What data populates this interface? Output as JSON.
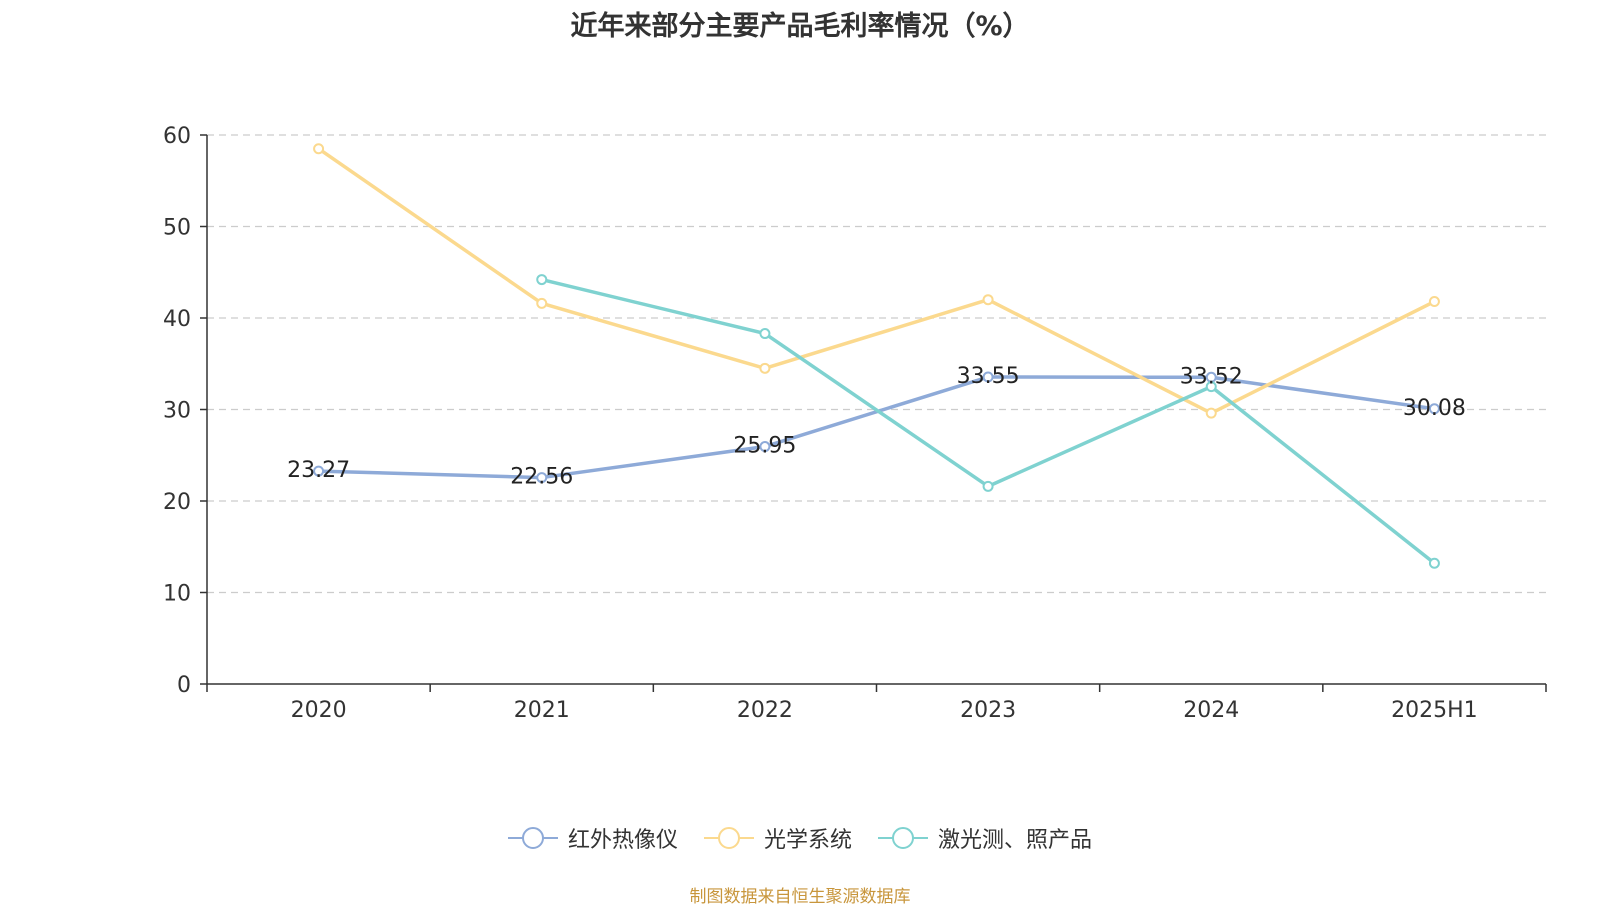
{
  "chart_data": {
    "type": "line",
    "title": "近年来部分主要产品毛利率情况（%）",
    "categories": [
      "2020",
      "2021",
      "2022",
      "2023",
      "2024",
      "2025H1"
    ],
    "ylim": [
      0,
      60
    ],
    "yticks": [
      0,
      10,
      20,
      30,
      40,
      50,
      60
    ],
    "grid": true,
    "legend_position": "bottom",
    "series": [
      {
        "name": "红外热像仪",
        "color": "#8eaad8",
        "values": [
          23.27,
          22.56,
          25.95,
          33.55,
          33.52,
          30.08
        ],
        "data_labels": [
          "23.27",
          "22.56",
          "25.95",
          "33.55",
          "33.52",
          "30.08"
        ]
      },
      {
        "name": "光学系统",
        "color": "#fbd98e",
        "values": [
          58.5,
          41.6,
          34.5,
          42.0,
          29.6,
          41.8
        ]
      },
      {
        "name": "激光测、照产品",
        "color": "#7fd2d0",
        "values": [
          null,
          44.2,
          38.3,
          21.6,
          32.5,
          13.2
        ]
      }
    ]
  },
  "source_note": "制图数据来自恒生聚源数据库"
}
